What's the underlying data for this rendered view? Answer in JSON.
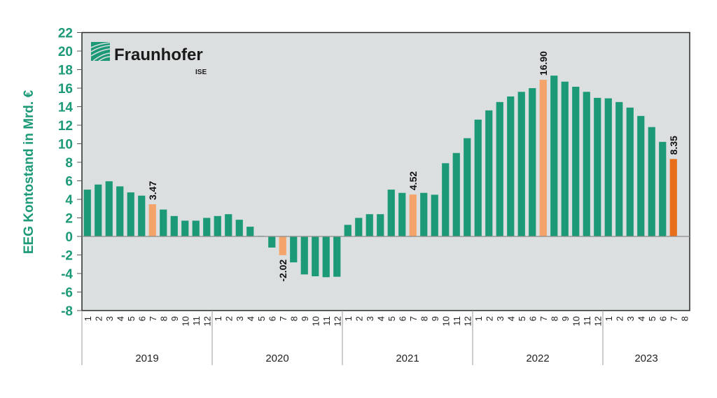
{
  "chart_data": {
    "type": "bar",
    "title": "",
    "xlabel": "",
    "ylabel": "EEG Kontostand in Mrd. €",
    "ylim": [
      -8,
      22
    ],
    "yticks": [
      -8,
      -6,
      -4,
      -2,
      0,
      2,
      4,
      6,
      8,
      10,
      12,
      14,
      16,
      18,
      20,
      22
    ],
    "grid": false,
    "logo": {
      "name": "Fraunhofer",
      "sub": "ISE"
    },
    "years": [
      {
        "label": "2019",
        "months": 12
      },
      {
        "label": "2020",
        "months": 12
      },
      {
        "label": "2021",
        "months": 12
      },
      {
        "label": "2022",
        "months": 12
      },
      {
        "label": "2023",
        "months": 8
      }
    ],
    "categories": [
      "1",
      "2",
      "3",
      "4",
      "5",
      "6",
      "7",
      "8",
      "9",
      "10",
      "11",
      "12",
      "1",
      "2",
      "3",
      "4",
      "5",
      "6",
      "7",
      "8",
      "9",
      "10",
      "11",
      "12",
      "1",
      "2",
      "3",
      "4",
      "5",
      "6",
      "7",
      "8",
      "9",
      "10",
      "11",
      "12",
      "1",
      "2",
      "3",
      "4",
      "5",
      "6",
      "7",
      "8",
      "9",
      "10",
      "11",
      "12",
      "1",
      "2",
      "3",
      "4",
      "5",
      "6",
      "7",
      "8"
    ],
    "values": [
      5.05,
      5.6,
      5.95,
      5.4,
      4.75,
      4.4,
      3.47,
      2.9,
      2.2,
      1.7,
      1.7,
      2.0,
      2.2,
      2.4,
      1.8,
      1.05,
      0.05,
      -1.2,
      -2.02,
      -2.8,
      -4.1,
      -4.3,
      -4.4,
      -4.35,
      1.25,
      2.0,
      2.4,
      2.4,
      5.05,
      4.7,
      4.52,
      4.7,
      4.5,
      7.9,
      9.0,
      10.6,
      12.6,
      13.6,
      14.5,
      15.1,
      15.6,
      16.0,
      16.9,
      17.35,
      16.7,
      16.15,
      15.6,
      14.95,
      14.9,
      14.5,
      13.9,
      13.0,
      11.8,
      10.2,
      8.35,
      null
    ],
    "highlights": [
      {
        "index": 6,
        "label": "3.47",
        "color": "#f4a46a"
      },
      {
        "index": 18,
        "label": "-2.02",
        "color": "#f4a46a"
      },
      {
        "index": 30,
        "label": "4.52",
        "color": "#f4a46a"
      },
      {
        "index": 42,
        "label": "16.90",
        "color": "#f4a46a"
      },
      {
        "index": 54,
        "label": "8.35",
        "color": "#e8701c"
      }
    ],
    "colors": {
      "bar": "#1c9a78",
      "axis_label": "#1c9a78",
      "plot_bg": "#dcdfe0",
      "frame": "#2a2a2a"
    }
  }
}
